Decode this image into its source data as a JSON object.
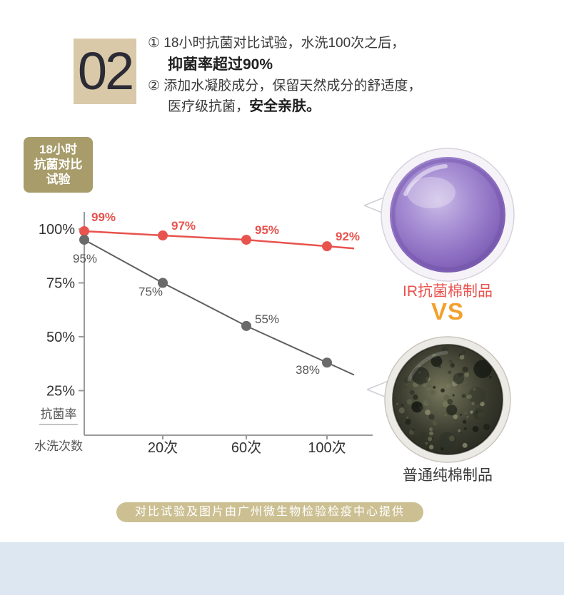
{
  "colors": {
    "accent_red": "#e8534e",
    "vs_orange": "#f2a12e",
    "badge_olive": "#a79c6a",
    "number_block_beige": "#d9c9a8",
    "banner_khaki": "#ccc093",
    "footer_strip_blue": "#dce7f1",
    "gray_series": "#5f5f5f",
    "purple_dish": "#8b6cc0"
  },
  "header": {
    "section_number": "02",
    "line1": "① 18小时抗菌对比试验，水洗100次之后，",
    "line2": "抑菌率超过90%",
    "line3": "② 添加水凝胶成分，保留天然成分的舒适度，",
    "line4_regular": "医疗级抗菌，",
    "line4_bold": "安全亲肤。"
  },
  "badge": {
    "line1": "18小时",
    "line2": "抗菌对比",
    "line3": "试验"
  },
  "chart_data": {
    "type": "line",
    "title": "18小时抗菌对比试验",
    "x_tick_labels": [
      "20次",
      "60次",
      "100次"
    ],
    "x_values_washes": [
      0,
      20,
      60,
      100
    ],
    "y_ticks": [
      100,
      75,
      50,
      25
    ],
    "y_tick_labels": [
      "100%",
      "75%",
      "50%",
      "25%"
    ],
    "y_axis_title": "抗菌率",
    "x_axis_title": "水洗次数",
    "ylim": [
      0,
      110
    ],
    "grid": false,
    "legend_position": "none",
    "series": [
      {
        "name": "IR抗菌棉制品",
        "color": "#e8534e",
        "values": [
          99,
          97,
          95,
          92
        ],
        "point_labels": [
          "99%",
          "97%",
          "95%",
          "92%"
        ]
      },
      {
        "name": "普通纯棉制品",
        "color": "#5f5f5f",
        "values": [
          95,
          75,
          55,
          38
        ],
        "point_labels": [
          "95%",
          "75%",
          "55%",
          "38%"
        ]
      }
    ]
  },
  "comparison": {
    "dish1_label": "IR抗菌棉制品",
    "vs_label": "VS",
    "dish2_label": "普通纯棉制品"
  },
  "footer": {
    "banner_text": "对比试验及图片由广州微生物检验检疫中心提供"
  }
}
